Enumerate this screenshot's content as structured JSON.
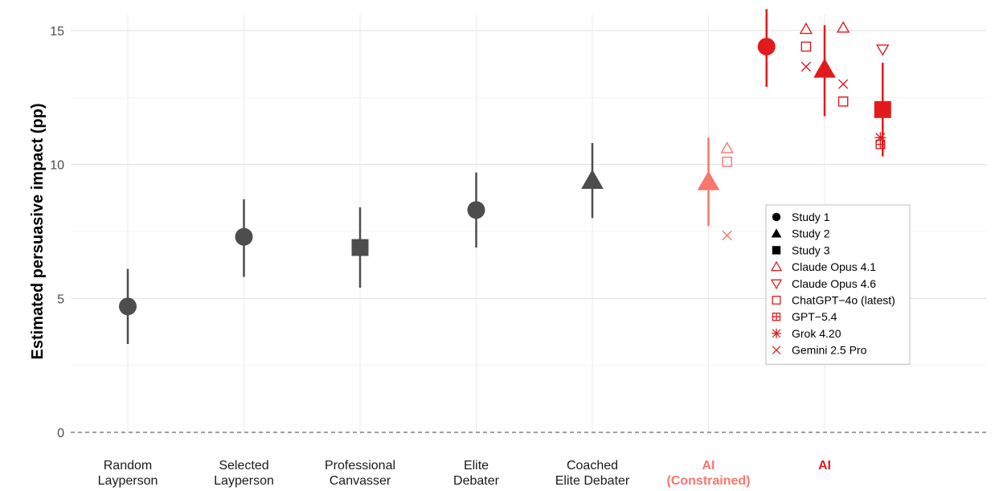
{
  "chart_data": {
    "type": "scatter",
    "ylabel": "Estimated persuasive impact (pp)",
    "xlabel": "",
    "ylim": [
      0,
      15
    ],
    "yticks": [
      0,
      5,
      10,
      15
    ],
    "ytick_labels": [
      "0",
      "5",
      "10",
      "15"
    ],
    "grid": true,
    "reference_line": 0,
    "legend_placement": "right",
    "categories": [
      {
        "lines": [
          "Random",
          "Layperson"
        ],
        "style": "default"
      },
      {
        "lines": [
          "Selected",
          "Layperson"
        ],
        "style": "default"
      },
      {
        "lines": [
          "Professional",
          "Canvasser"
        ],
        "style": "default"
      },
      {
        "lines": [
          "Elite",
          "Debater"
        ],
        "style": "default"
      },
      {
        "lines": [
          "Coached",
          "Elite Debater"
        ],
        "style": "default"
      },
      {
        "lines": [
          "AI",
          "(Constrained)"
        ],
        "style": "ai-c"
      },
      {
        "lines": [
          "AI",
          ""
        ],
        "style": "ai"
      }
    ],
    "estimates": [
      {
        "category": 0,
        "study": "Study 1",
        "shape": "circle",
        "y": 4.7,
        "lo": 3.3,
        "hi": 6.1,
        "color": "#4d4d4d",
        "offset": 0
      },
      {
        "category": 1,
        "study": "Study 1",
        "shape": "circle",
        "y": 7.3,
        "lo": 5.8,
        "hi": 8.7,
        "color": "#4d4d4d",
        "offset": 0
      },
      {
        "category": 2,
        "study": "Study 3",
        "shape": "square",
        "y": 6.9,
        "lo": 5.4,
        "hi": 8.4,
        "color": "#4d4d4d",
        "offset": 0
      },
      {
        "category": 3,
        "study": "Study 1",
        "shape": "circle",
        "y": 8.3,
        "lo": 6.9,
        "hi": 9.7,
        "color": "#4d4d4d",
        "offset": 0
      },
      {
        "category": 4,
        "study": "Study 2",
        "shape": "triangle",
        "y": 9.4,
        "lo": 8.0,
        "hi": 10.8,
        "color": "#4d4d4d",
        "offset": 0
      },
      {
        "category": 5,
        "study": "Study 2",
        "shape": "triangle",
        "y": 9.35,
        "lo": 7.7,
        "hi": 11.0,
        "color": "#f8766d",
        "offset": 0
      },
      {
        "category": 6,
        "study": "Study 1",
        "shape": "circle",
        "y": 14.4,
        "lo": 12.9,
        "hi": 15.8,
        "color": "#e31a1c",
        "offset": -0.5
      },
      {
        "category": 6,
        "study": "Study 2",
        "shape": "triangle",
        "y": 13.55,
        "lo": 11.8,
        "hi": 15.2,
        "color": "#e31a1c",
        "offset": 0
      },
      {
        "category": 6,
        "study": "Study 3",
        "shape": "square",
        "y": 12.05,
        "lo": 10.3,
        "hi": 13.8,
        "color": "#e31a1c",
        "offset": 0.5
      }
    ],
    "model_points": [
      {
        "category": 5,
        "model": "Claude Opus 4.1",
        "shape": "triangle-open",
        "y": 10.6,
        "offset": 0.16,
        "color": "#f8766d"
      },
      {
        "category": 5,
        "model": "ChatGPT-4o (latest)",
        "shape": "square-open",
        "y": 10.1,
        "offset": 0.16,
        "color": "#f8766d"
      },
      {
        "category": 5,
        "model": "Gemini 2.5 Pro",
        "shape": "x",
        "y": 7.35,
        "offset": 0.16,
        "color": "#f8766d"
      },
      {
        "category": 6,
        "model": "Claude Opus 4.1",
        "shape": "triangle-open",
        "y": 15.05,
        "offset": -0.16,
        "color": "#e31a1c"
      },
      {
        "category": 6,
        "model": "ChatGPT-4o (latest)",
        "shape": "square-open",
        "y": 14.4,
        "offset": -0.16,
        "color": "#e31a1c"
      },
      {
        "category": 6,
        "model": "Gemini 2.5 Pro",
        "shape": "x",
        "y": 13.65,
        "offset": -0.16,
        "color": "#e31a1c"
      },
      {
        "category": 6,
        "model": "Claude Opus 4.1",
        "shape": "triangle-open",
        "y": 15.1,
        "offset": 0.16,
        "color": "#e31a1c"
      },
      {
        "category": 6,
        "model": "Gemini 2.5 Pro",
        "shape": "x",
        "y": 13.0,
        "offset": 0.16,
        "color": "#e31a1c"
      },
      {
        "category": 6,
        "model": "ChatGPT-4o (latest)",
        "shape": "square-open",
        "y": 12.35,
        "offset": 0.16,
        "color": "#e31a1c"
      },
      {
        "category": 6,
        "model": "Claude Opus 4.6",
        "shape": "triangle-down-open",
        "y": 14.3,
        "offset": 0.5,
        "color": "#e31a1c"
      },
      {
        "category": 6,
        "model": "Grok 4.20",
        "shape": "asterisk",
        "y": 11.0,
        "offset": 0.48,
        "color": "#e31a1c"
      },
      {
        "category": 6,
        "model": "GPT-5.4",
        "shape": "boxplus",
        "y": 10.75,
        "offset": 0.48,
        "color": "#e31a1c"
      }
    ],
    "legend": [
      {
        "label": "Study 1",
        "shape": "circle",
        "color": "#000000"
      },
      {
        "label": "Study 2",
        "shape": "triangle",
        "color": "#000000"
      },
      {
        "label": "Study 3",
        "shape": "square",
        "color": "#000000"
      },
      {
        "label": "Claude Opus 4.1",
        "shape": "triangle-open",
        "color": "#e31a1c"
      },
      {
        "label": "Claude Opus 4.6",
        "shape": "triangle-down-open",
        "color": "#e31a1c"
      },
      {
        "label": "ChatGPT−4o (latest)",
        "shape": "square-open",
        "color": "#e31a1c"
      },
      {
        "label": "GPT−5.4",
        "shape": "boxplus",
        "color": "#e31a1c"
      },
      {
        "label": "Grok 4.20",
        "shape": "asterisk",
        "color": "#e31a1c"
      },
      {
        "label": "Gemini 2.5 Pro",
        "shape": "x",
        "color": "#e31a1c"
      }
    ]
  }
}
